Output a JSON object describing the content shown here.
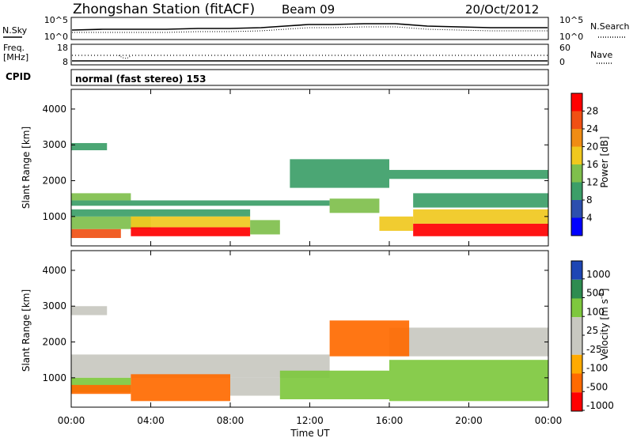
{
  "header": {
    "station": "Zhongshan Station (fitACF)",
    "beam": "Beam 09",
    "date": "20/Oct/2012"
  },
  "sky_panel": {
    "left_label": "N.Sky",
    "left_ticks": [
      "10^5",
      "10^0"
    ],
    "right_ticks": [
      "10^5",
      "10^0"
    ],
    "right_label": "N.Search"
  },
  "freq_panel": {
    "left_label_1": "Freq.",
    "left_label_2": "[MHz]",
    "left_ticks": [
      "18",
      "8"
    ],
    "right_ticks": [
      "60",
      "0"
    ],
    "right_label": "Nave"
  },
  "cpid_label": "CPID",
  "mode_text": "normal (fast stereo) 153",
  "colors": {
    "power": [
      "#0000ff",
      "#2d4fae",
      "#3c9e68",
      "#7fbf4c",
      "#f0c81e",
      "#f08c14",
      "#f05014",
      "#ff0000"
    ],
    "velocity": [
      "#ff0000",
      "#ff6a00",
      "#ffaa00",
      "#c8c8c0",
      "#c8c8c0",
      "#7ec83e",
      "#2e8c50",
      "#1e46b4"
    ]
  },
  "chart_data": [
    {
      "type": "heatmap",
      "title": "",
      "xlabel": "",
      "ylabel": "Slant Range [km]",
      "xlim": [
        0,
        24
      ],
      "ylim": [
        180,
        4550
      ],
      "y_ticks": [
        1000,
        2000,
        3000,
        4000
      ],
      "colorbar": {
        "label": "Power [dB]",
        "ticks": [
          4,
          8,
          12,
          16,
          20,
          24,
          28
        ],
        "range": [
          0,
          32
        ]
      },
      "bands": [
        {
          "x0": 0,
          "x1": 2.5,
          "y0": 400,
          "y1": 650,
          "v": 27
        },
        {
          "x0": 0,
          "x1": 4,
          "y0": 650,
          "y1": 1000,
          "v": 14
        },
        {
          "x0": 0,
          "x1": 9,
          "y0": 1000,
          "y1": 1200,
          "v": 10
        },
        {
          "x0": 0,
          "x1": 13,
          "y0": 1300,
          "y1": 1450,
          "v": 9
        },
        {
          "x0": 0,
          "x1": 3,
          "y0": 1450,
          "y1": 1650,
          "v": 13
        },
        {
          "x0": 0,
          "x1": 1.8,
          "y0": 2850,
          "y1": 3050,
          "v": 8
        },
        {
          "x0": 3,
          "x1": 9,
          "y0": 450,
          "y1": 700,
          "v": 28
        },
        {
          "x0": 3,
          "x1": 9,
          "y0": 700,
          "y1": 1000,
          "v": 17
        },
        {
          "x0": 9,
          "x1": 10.5,
          "y0": 500,
          "y1": 900,
          "v": 12
        },
        {
          "x0": 13,
          "x1": 15.5,
          "y0": 1100,
          "y1": 1500,
          "v": 12
        },
        {
          "x0": 15.5,
          "x1": 17.2,
          "y0": 600,
          "y1": 1000,
          "v": 19
        },
        {
          "x0": 17.2,
          "x1": 24,
          "y0": 450,
          "y1": 800,
          "v": 28
        },
        {
          "x0": 17.2,
          "x1": 24,
          "y0": 800,
          "y1": 1200,
          "v": 18
        },
        {
          "x0": 17.2,
          "x1": 24,
          "y0": 1250,
          "y1": 1650,
          "v": 11
        },
        {
          "x0": 16,
          "x1": 24,
          "y0": 2050,
          "y1": 2300,
          "v": 8
        },
        {
          "x0": 11,
          "x1": 16,
          "y0": 1800,
          "y1": 2600,
          "v": 8
        }
      ]
    },
    {
      "type": "heatmap",
      "title": "",
      "xlabel": "Time UT",
      "ylabel": "Slant Range [km]",
      "xlim": [
        0,
        24
      ],
      "ylim": [
        180,
        4550
      ],
      "x_ticks": [
        "00:00",
        "04:00",
        "08:00",
        "12:00",
        "16:00",
        "20:00",
        "00:00"
      ],
      "y_ticks": [
        1000,
        2000,
        3000,
        4000
      ],
      "colorbar": {
        "label": "Velocity [m s^-1]",
        "ticks": [
          1000,
          500,
          100,
          25,
          -25,
          -100,
          -500,
          -1000
        ],
        "range": [
          -1200,
          1200
        ]
      },
      "bands": [
        {
          "x0": 0,
          "x1": 13,
          "y0": 1000,
          "y1": 1650,
          "v": 0
        },
        {
          "x0": 0,
          "x1": 1.8,
          "y0": 2750,
          "y1": 3000,
          "v": 0
        },
        {
          "x0": 0,
          "x1": 3,
          "y0": 600,
          "y1": 1000,
          "v": 150
        },
        {
          "x0": 0,
          "x1": 3,
          "y0": 550,
          "y1": 800,
          "v": -300
        },
        {
          "x0": 3,
          "x1": 8,
          "y0": 350,
          "y1": 1100,
          "v": -250
        },
        {
          "x0": 8,
          "x1": 10.5,
          "y0": 500,
          "y1": 1000,
          "v": 0
        },
        {
          "x0": 10.5,
          "x1": 16,
          "y0": 400,
          "y1": 1200,
          "v": 400
        },
        {
          "x0": 16,
          "x1": 24,
          "y0": 1600,
          "y1": 2400,
          "v": 0
        },
        {
          "x0": 16,
          "x1": 24,
          "y0": 350,
          "y1": 1500,
          "v": 420
        },
        {
          "x0": 13,
          "x1": 17,
          "y0": 1600,
          "y1": 2600,
          "v": -300
        }
      ]
    }
  ]
}
